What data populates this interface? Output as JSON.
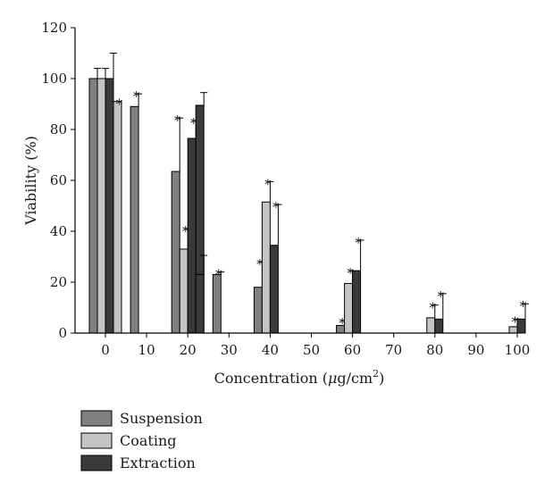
{
  "chart_data": {
    "type": "bar",
    "categories": [
      "0",
      "10",
      "20",
      "30",
      "40",
      "50",
      "60",
      "70",
      "80",
      "90",
      "100"
    ],
    "xlabel_main": "Concentration (",
    "xlabel_mu": "μ",
    "xlabel_unit": "g/cm",
    "xlabel_sup": "2",
    "xlabel_close": ")",
    "ylabel": "Viability (%)",
    "ylim": [
      0,
      120
    ],
    "yticks": [
      "0",
      "20",
      "40",
      "60",
      "80",
      "100",
      "120"
    ],
    "grid": false,
    "legend_position": "bottom-left",
    "series": [
      {
        "name": "Suspension",
        "color": "#808080",
        "values": [
          100,
          89,
          63.5,
          23,
          18,
          null,
          3,
          null,
          null,
          null,
          null
        ],
        "errors": [
          4,
          5,
          21,
          1,
          10,
          null,
          2,
          null,
          null,
          null,
          null
        ],
        "stars": [
          false,
          true,
          true,
          true,
          true,
          false,
          true,
          false,
          false,
          false,
          false
        ]
      },
      {
        "name": "Coating",
        "color": "#c4c4c4",
        "values": [
          100,
          null,
          33,
          null,
          51.5,
          null,
          19.5,
          null,
          6,
          null,
          2.5
        ],
        "errors": [
          4,
          null,
          8,
          null,
          8,
          null,
          5,
          null,
          5,
          null,
          3
        ],
        "stars": [
          false,
          false,
          true,
          false,
          true,
          false,
          true,
          false,
          true,
          false,
          true
        ]
      },
      {
        "name": "Extraction",
        "color": "#3a3a3a",
        "values": [
          100,
          null,
          76.5,
          null,
          34.5,
          null,
          24.5,
          null,
          5.5,
          null,
          5.5
        ],
        "errors": [
          10,
          null,
          7,
          null,
          16,
          null,
          12,
          null,
          10,
          null,
          6
        ],
        "stars": [
          false,
          false,
          true,
          false,
          true,
          false,
          true,
          false,
          true,
          false,
          true
        ]
      }
    ],
    "extra_bars": [
      {
        "category": "0",
        "value": 91,
        "error": 0,
        "star": true,
        "color": "#c4c4c4"
      },
      {
        "category": "20",
        "value": 89.5,
        "error": 5,
        "star": false,
        "color": "#3a3a3a"
      },
      {
        "category": "20",
        "value": 23,
        "error": 7.5,
        "star": false,
        "color": "#3a3a3a"
      }
    ],
    "star_symbol": "*"
  }
}
